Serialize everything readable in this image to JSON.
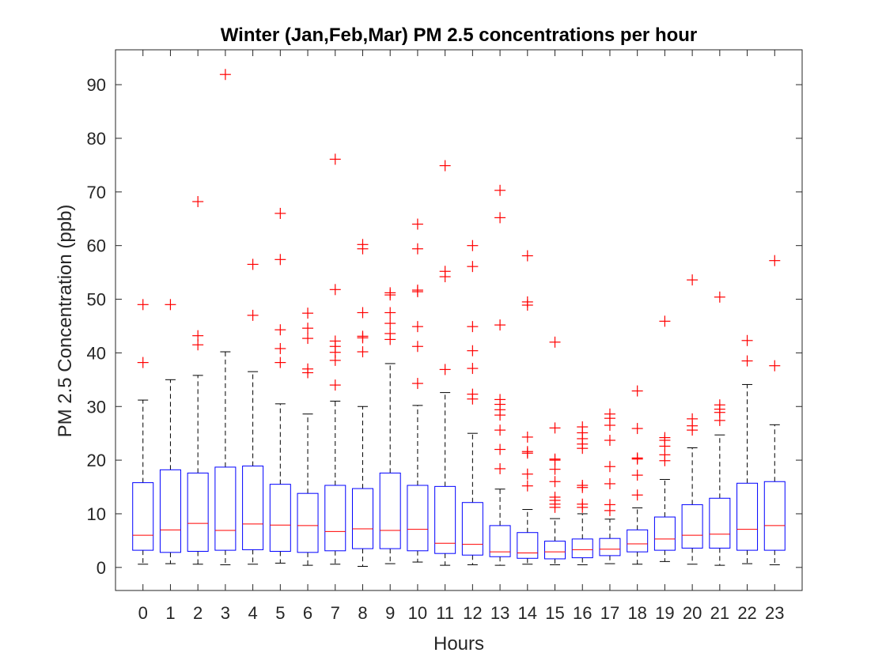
{
  "chart_data": {
    "type": "box",
    "title": "Winter (Jan,Feb,Mar) PM 2.5 concentrations per hour",
    "xlabel": "Hours",
    "ylabel": "PM 2.5 Concentration (ppb)",
    "ylim": [
      -4.3,
      96.5
    ],
    "yticks": [
      0,
      10,
      20,
      30,
      40,
      50,
      60,
      70,
      80,
      90
    ],
    "categories": [
      "0",
      "1",
      "2",
      "3",
      "4",
      "5",
      "6",
      "7",
      "8",
      "9",
      "10",
      "11",
      "12",
      "13",
      "14",
      "15",
      "16",
      "17",
      "18",
      "19",
      "20",
      "21",
      "22",
      "23"
    ],
    "grid": false,
    "colors": {
      "box": "#0000ff",
      "median": "#ff0000",
      "whisker": "#000000",
      "outlier": "#ff0000",
      "axis": "#262626"
    },
    "boxes": [
      {
        "hour": "0",
        "whisker_low": 0.6,
        "q1": 3.2,
        "median": 6.0,
        "q3": 15.8,
        "whisker_high": 31.2,
        "outliers": [
          38.2,
          49.0
        ]
      },
      {
        "hour": "1",
        "whisker_low": 0.7,
        "q1": 2.8,
        "median": 7.0,
        "q3": 18.2,
        "whisker_high": 35.0,
        "outliers": [
          49.0
        ]
      },
      {
        "hour": "2",
        "whisker_low": 0.6,
        "q1": 3.0,
        "median": 8.2,
        "q3": 17.6,
        "whisker_high": 35.8,
        "outliers": [
          41.5,
          43.2,
          68.2
        ]
      },
      {
        "hour": "3",
        "whisker_low": 0.5,
        "q1": 3.2,
        "median": 6.9,
        "q3": 18.7,
        "whisker_high": 40.2,
        "outliers": [
          91.9
        ]
      },
      {
        "hour": "4",
        "whisker_low": 0.6,
        "q1": 3.3,
        "median": 8.1,
        "q3": 18.9,
        "whisker_high": 36.5,
        "outliers": [
          47.0,
          56.5
        ]
      },
      {
        "hour": "5",
        "whisker_low": 0.8,
        "q1": 3.0,
        "median": 7.9,
        "q3": 15.5,
        "whisker_high": 30.5,
        "outliers": [
          38.2,
          40.8,
          44.3,
          57.4,
          66.0
        ]
      },
      {
        "hour": "6",
        "whisker_low": 0.4,
        "q1": 2.8,
        "median": 7.8,
        "q3": 13.8,
        "whisker_high": 28.6,
        "outliers": [
          36.3,
          37.0,
          42.7,
          44.6,
          47.4
        ]
      },
      {
        "hour": "7",
        "whisker_low": 0.6,
        "q1": 3.1,
        "median": 6.7,
        "q3": 15.3,
        "whisker_high": 31.0,
        "outliers": [
          34.0,
          38.6,
          40.1,
          41.2,
          42.2,
          51.8,
          76.1
        ]
      },
      {
        "hour": "8",
        "whisker_low": 0.2,
        "q1": 3.5,
        "median": 7.2,
        "q3": 14.7,
        "whisker_high": 30.0,
        "outliers": [
          40.2,
          42.8,
          43.1,
          47.5,
          59.4,
          60.2
        ]
      },
      {
        "hour": "9",
        "whisker_low": 0.7,
        "q1": 3.5,
        "median": 6.9,
        "q3": 17.6,
        "whisker_high": 38.0,
        "outliers": [
          42.5,
          43.6,
          45.5,
          47.5,
          50.8,
          51.2
        ]
      },
      {
        "hour": "10",
        "whisker_low": 1.0,
        "q1": 3.1,
        "median": 7.1,
        "q3": 15.3,
        "whisker_high": 30.2,
        "outliers": [
          34.3,
          41.2,
          44.9,
          51.4,
          51.7,
          59.4,
          64.0
        ]
      },
      {
        "hour": "11",
        "whisker_low": 0.4,
        "q1": 2.6,
        "median": 4.5,
        "q3": 15.1,
        "whisker_high": 32.6,
        "outliers": [
          36.9,
          54.2,
          55.2,
          74.9
        ]
      },
      {
        "hour": "12",
        "whisker_low": 0.5,
        "q1": 2.3,
        "median": 4.3,
        "q3": 12.1,
        "whisker_high": 25.0,
        "outliers": [
          31.4,
          32.3,
          37.1,
          40.4,
          44.9,
          56.1,
          60.0
        ]
      },
      {
        "hour": "13",
        "whisker_low": 0.4,
        "q1": 2.0,
        "median": 2.9,
        "q3": 7.8,
        "whisker_high": 14.6,
        "outliers": [
          18.4,
          22.0,
          25.6,
          28.4,
          29.4,
          30.4,
          31.3,
          45.2,
          65.2,
          70.3
        ]
      },
      {
        "hour": "14",
        "whisker_low": 0.6,
        "q1": 1.7,
        "median": 2.7,
        "q3": 6.5,
        "whisker_high": 10.8,
        "outliers": [
          15.2,
          17.4,
          21.3,
          21.6,
          24.3,
          48.9,
          49.5,
          58.1
        ]
      },
      {
        "hour": "15",
        "whisker_low": 0.5,
        "q1": 1.6,
        "median": 2.9,
        "q3": 4.9,
        "whisker_high": 9.1,
        "outliers": [
          11.2,
          11.8,
          12.5,
          13.1,
          16.0,
          18.3,
          20.0,
          20.2,
          26.0,
          42.0
        ]
      },
      {
        "hour": "16",
        "whisker_low": 0.5,
        "q1": 1.8,
        "median": 3.3,
        "q3": 5.3,
        "whisker_high": 10.0,
        "outliers": [
          11.2,
          11.8,
          14.9,
          15.3,
          22.2,
          23.0,
          24.0,
          25.1,
          26.2
        ]
      },
      {
        "hour": "17",
        "whisker_low": 0.7,
        "q1": 2.2,
        "median": 3.4,
        "q3": 5.4,
        "whisker_high": 9.0,
        "outliers": [
          10.6,
          11.7,
          15.6,
          18.8,
          23.7,
          26.5,
          27.8,
          28.6
        ]
      },
      {
        "hour": "18",
        "whisker_low": 0.6,
        "q1": 2.9,
        "median": 4.4,
        "q3": 7.0,
        "whisker_high": 11.1,
        "outliers": [
          13.5,
          17.2,
          20.2,
          20.4,
          25.9,
          32.9
        ]
      },
      {
        "hour": "19",
        "whisker_low": 1.1,
        "q1": 3.2,
        "median": 5.3,
        "q3": 9.4,
        "whisker_high": 16.4,
        "outliers": [
          19.9,
          21.0,
          22.6,
          23.7,
          24.2,
          45.9
        ]
      },
      {
        "hour": "20",
        "whisker_low": 0.6,
        "q1": 3.6,
        "median": 6.0,
        "q3": 11.7,
        "whisker_high": 22.3,
        "outliers": [
          25.6,
          26.4,
          27.7,
          53.6
        ]
      },
      {
        "hour": "21",
        "whisker_low": 0.4,
        "q1": 3.6,
        "median": 6.2,
        "q3": 12.9,
        "whisker_high": 24.7,
        "outliers": [
          27.4,
          28.9,
          29.5,
          30.3,
          50.4
        ]
      },
      {
        "hour": "22",
        "whisker_low": 0.7,
        "q1": 3.2,
        "median": 7.1,
        "q3": 15.7,
        "whisker_high": 34.1,
        "outliers": [
          38.5,
          42.3
        ]
      },
      {
        "hour": "23",
        "whisker_low": 0.5,
        "q1": 3.2,
        "median": 7.8,
        "q3": 16.0,
        "whisker_high": 26.6,
        "outliers": [
          37.6,
          57.2
        ]
      }
    ]
  }
}
